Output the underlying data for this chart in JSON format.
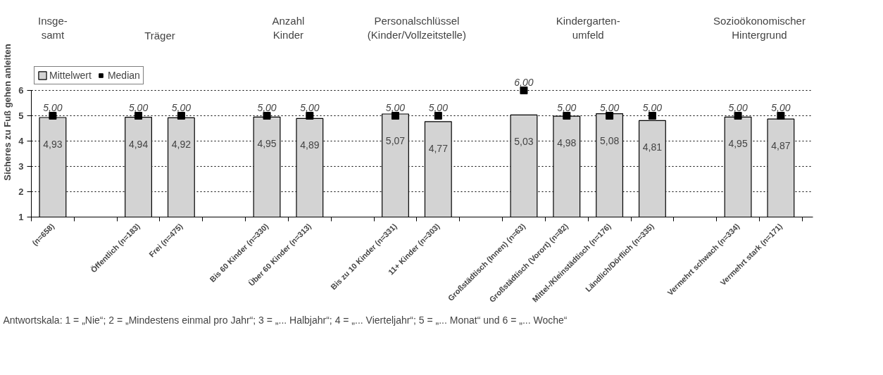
{
  "chart_data": {
    "type": "bar",
    "ylabel": "Sicheres zu Fuß gehen anleiten",
    "categories": [
      "(n=658)",
      null,
      "Öffentlich (n=183)",
      "Frei (n=475)",
      null,
      "Bis 60 Kinder (n=330)",
      "Über 60 Kinder (n=313)",
      null,
      "Bis zu 10 Kinder (n=331)",
      "11+ Kinder (n=303)",
      null,
      "Großstädtisch (Innen) (n=63)",
      "Großstädtisch (Vorort) (n=82)",
      "Mittel-/Kleinstädtisch (n=176)",
      "Ländlich/Dörflich (n=335)",
      null,
      "Vermehrt schwach (n=334)",
      "Vermehrt stark (n=171)"
    ],
    "series": [
      {
        "name": "Mittelwert",
        "color": "#d3d3d3",
        "values": [
          4.93,
          null,
          4.94,
          4.92,
          null,
          4.95,
          4.89,
          null,
          5.07,
          4.77,
          null,
          5.03,
          4.98,
          5.08,
          4.81,
          null,
          4.95,
          4.87
        ],
        "value_labels": [
          "4,93",
          null,
          "4,94",
          "4,92",
          null,
          "4,95",
          "4,89",
          null,
          "5,07",
          "4,77",
          null,
          "5,03",
          "4,98",
          "5,08",
          "4,81",
          null,
          "4,95",
          "4,87"
        ]
      },
      {
        "name": "Median",
        "type": "scatter",
        "marker": "square",
        "color": "#000000",
        "values": [
          5,
          null,
          5,
          5,
          null,
          5,
          5,
          null,
          5,
          5,
          null,
          6,
          5,
          5,
          5,
          null,
          5,
          5
        ],
        "value_labels": [
          "5,00",
          null,
          "5,00",
          "5,00",
          null,
          "5,00",
          "5,00",
          null,
          "5,00",
          "5,00",
          null,
          "6,00",
          "5,00",
          "5,00",
          "5,00",
          null,
          "5,00",
          "5,00"
        ]
      }
    ],
    "ylim": [
      1,
      6
    ],
    "yticks": [
      1,
      2,
      3,
      4,
      5,
      6
    ],
    "grid": "y",
    "legend": "top left",
    "annotations": [
      "Insge-\nsamt",
      "Träger",
      "Anzahl\nKinder",
      "Personalschlüssel\n(Kinder/Vollzeitstelle)",
      "Kindergarten-\numfeld",
      "Sozioökonomischer\nHintergrund",
      "Antwortskala: 1 = „Nie“;  2 = „Mindestens einmal pro Jahr“; 3 = „... Halbjahr“; 4 = „... Vierteljahr“; 5 = „... Monat“ und 6 = „... Woche“"
    ]
  }
}
